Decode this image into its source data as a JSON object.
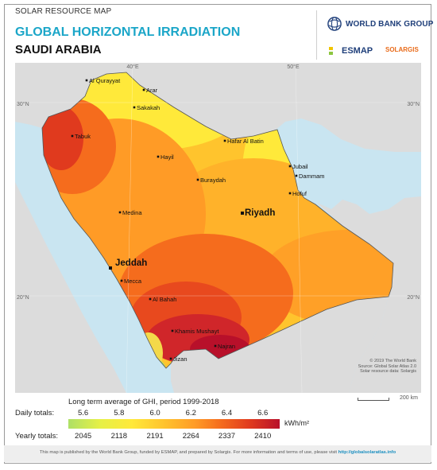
{
  "header": {
    "small_title": "SOLAR RESOURCE MAP",
    "title": "GLOBAL HORIZONTAL IRRADIATION",
    "country": "SAUDI ARABIA"
  },
  "logos": {
    "world_bank": "WORLD BANK GROUP",
    "esmap": "ESMAP",
    "solargis": "SOLARGIS"
  },
  "graticule": {
    "lon_top": [
      "40°E",
      "50°E"
    ],
    "lat_left": [
      "30°N",
      "20°N"
    ],
    "lat_right": [
      "30°N",
      "20°N"
    ]
  },
  "cities": [
    {
      "name": "Al Qurayyat",
      "major": false
    },
    {
      "name": "Arar",
      "major": false
    },
    {
      "name": "Sakakah",
      "major": false
    },
    {
      "name": "Tabuk",
      "major": false
    },
    {
      "name": "Hafar Al Batin",
      "major": false
    },
    {
      "name": "Hayil",
      "major": false
    },
    {
      "name": "Jubail",
      "major": false
    },
    {
      "name": "Dammam",
      "major": false
    },
    {
      "name": "Buraydah",
      "major": false
    },
    {
      "name": "Hofuf",
      "major": false
    },
    {
      "name": "Riyadh",
      "major": true
    },
    {
      "name": "Medina",
      "major": false
    },
    {
      "name": "Jeddah",
      "major": true
    },
    {
      "name": "Mecca",
      "major": false
    },
    {
      "name": "Al Bahah",
      "major": false
    },
    {
      "name": "Khamis Mushayt",
      "major": false
    },
    {
      "name": "Najran",
      "major": false
    },
    {
      "name": "Jizan",
      "major": false
    }
  ],
  "credit": {
    "line1": "© 2019 The World Bank",
    "line2": "Source: Global Solar Atlas 2.0",
    "line3": "Solar resource data: Solargis"
  },
  "scale": {
    "label": "200 km"
  },
  "legend": {
    "caption": "Long term average of GHI, period 1999-2018",
    "daily_label": "Daily totals:",
    "daily_values": [
      "5.6",
      "5.8",
      "6.0",
      "6.2",
      "6.4",
      "6.6"
    ],
    "yearly_label": "Yearly totals:",
    "yearly_values": [
      "2045",
      "2118",
      "2191",
      "2264",
      "2337",
      "2410"
    ],
    "unit": "kWh/m²",
    "colors": [
      "#aee066",
      "#e6f046",
      "#ffe93a",
      "#ffc42d",
      "#ff9b26",
      "#f56c1d",
      "#e03a1e",
      "#b8102a"
    ]
  },
  "footer": {
    "text": "This map is published by the World Bank Group, funded by ESMAP, and prepared by Solargis. For more information and terms of use, please visit",
    "link": "http://globalsolaratlas.info"
  }
}
